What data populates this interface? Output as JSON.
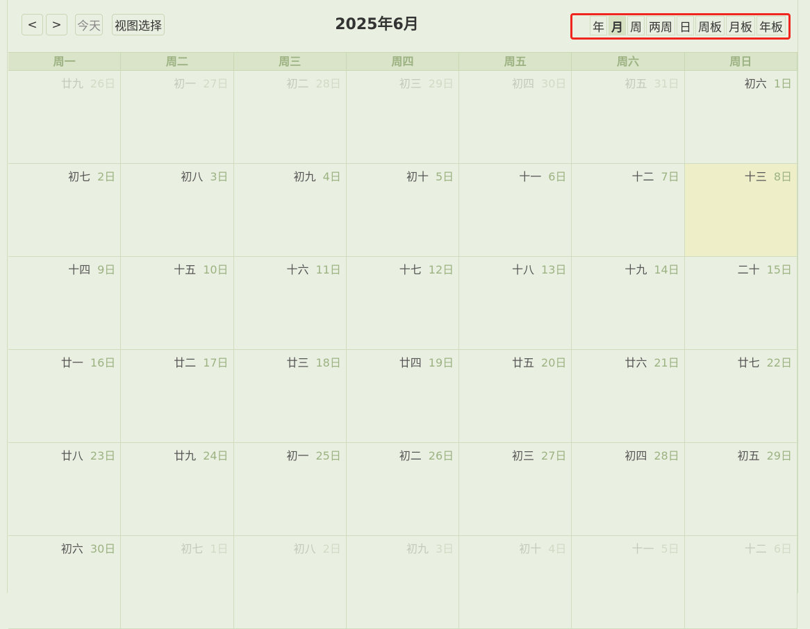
{
  "toolbar": {
    "prev_icon": "chevron-left-icon",
    "next_icon": "chevron-right-icon",
    "prev": "<",
    "next": ">",
    "today": "今天",
    "view_select": "视图选择"
  },
  "title": "2025年6月",
  "views": [
    {
      "label": "年"
    },
    {
      "label": "月",
      "active": true
    },
    {
      "label": "周"
    },
    {
      "label": "两周"
    },
    {
      "label": "日"
    },
    {
      "label": "周板"
    },
    {
      "label": "月板"
    },
    {
      "label": "年板"
    }
  ],
  "weekdays": [
    "周一",
    "周二",
    "周三",
    "周四",
    "周五",
    "周六",
    "周日"
  ],
  "colors": {
    "highlight_border": "#f0261e",
    "today_bg": "#eeefc8",
    "header_bg": "#d9e4c8"
  },
  "days": [
    {
      "lunar": "廿九",
      "day": "26日",
      "other": true
    },
    {
      "lunar": "初一",
      "day": "27日",
      "other": true
    },
    {
      "lunar": "初二",
      "day": "28日",
      "other": true
    },
    {
      "lunar": "初三",
      "day": "29日",
      "other": true
    },
    {
      "lunar": "初四",
      "day": "30日",
      "other": true
    },
    {
      "lunar": "初五",
      "day": "31日",
      "other": true
    },
    {
      "lunar": "初六",
      "day": "1日"
    },
    {
      "lunar": "初七",
      "day": "2日"
    },
    {
      "lunar": "初八",
      "day": "3日"
    },
    {
      "lunar": "初九",
      "day": "4日"
    },
    {
      "lunar": "初十",
      "day": "5日"
    },
    {
      "lunar": "十一",
      "day": "6日"
    },
    {
      "lunar": "十二",
      "day": "7日"
    },
    {
      "lunar": "十三",
      "day": "8日",
      "today": true
    },
    {
      "lunar": "十四",
      "day": "9日"
    },
    {
      "lunar": "十五",
      "day": "10日"
    },
    {
      "lunar": "十六",
      "day": "11日"
    },
    {
      "lunar": "十七",
      "day": "12日"
    },
    {
      "lunar": "十八",
      "day": "13日"
    },
    {
      "lunar": "十九",
      "day": "14日"
    },
    {
      "lunar": "二十",
      "day": "15日"
    },
    {
      "lunar": "廿一",
      "day": "16日"
    },
    {
      "lunar": "廿二",
      "day": "17日"
    },
    {
      "lunar": "廿三",
      "day": "18日"
    },
    {
      "lunar": "廿四",
      "day": "19日"
    },
    {
      "lunar": "廿五",
      "day": "20日"
    },
    {
      "lunar": "廿六",
      "day": "21日"
    },
    {
      "lunar": "廿七",
      "day": "22日"
    },
    {
      "lunar": "廿八",
      "day": "23日"
    },
    {
      "lunar": "廿九",
      "day": "24日"
    },
    {
      "lunar": "初一",
      "day": "25日"
    },
    {
      "lunar": "初二",
      "day": "26日"
    },
    {
      "lunar": "初三",
      "day": "27日"
    },
    {
      "lunar": "初四",
      "day": "28日"
    },
    {
      "lunar": "初五",
      "day": "29日"
    },
    {
      "lunar": "初六",
      "day": "30日"
    },
    {
      "lunar": "初七",
      "day": "1日",
      "other": true
    },
    {
      "lunar": "初八",
      "day": "2日",
      "other": true
    },
    {
      "lunar": "初九",
      "day": "3日",
      "other": true
    },
    {
      "lunar": "初十",
      "day": "4日",
      "other": true
    },
    {
      "lunar": "十一",
      "day": "5日",
      "other": true
    },
    {
      "lunar": "十二",
      "day": "6日",
      "other": true
    }
  ]
}
